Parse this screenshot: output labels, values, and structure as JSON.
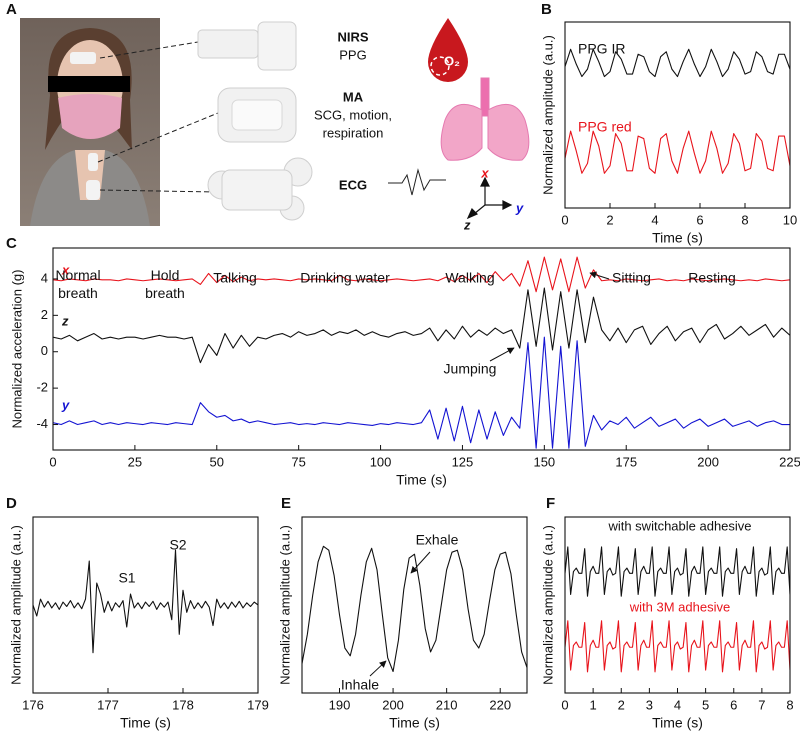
{
  "panel_labels": [
    "A",
    "B",
    "C",
    "D",
    "E",
    "F"
  ],
  "panel_a": {
    "devices": [
      {
        "title": "NIRS",
        "lines": [
          "PPG"
        ]
      },
      {
        "title": "MA",
        "lines": [
          "SCG, motion,",
          "respiration"
        ]
      },
      {
        "title": "ECG",
        "lines": []
      }
    ],
    "oxygen": "O₂",
    "axes": [
      "x",
      "y",
      "z"
    ]
  },
  "chart_data": [
    {
      "type": "line",
      "xlabel": "Time (s)",
      "ylabel": "Normalized amplitude (a.u.)",
      "xlim": [
        0,
        10
      ],
      "xticks": [
        0,
        2,
        4,
        6,
        8,
        10
      ],
      "ylim": [
        1.5,
        9
      ],
      "x": [
        0,
        0.25,
        0.5,
        0.75,
        1,
        1.25,
        1.5,
        1.75,
        2,
        2.25,
        2.5,
        2.75,
        3,
        3.25,
        3.5,
        3.75,
        4,
        4.25,
        4.5,
        4.75,
        5,
        5.25,
        5.5,
        5.75,
        6,
        6.25,
        6.5,
        6.75,
        7,
        7.25,
        7.5,
        7.75,
        8,
        8.25,
        8.5,
        8.75,
        9,
        9.25,
        9.5,
        9.75,
        10
      ],
      "series": [
        {
          "name": "PPG IR",
          "color": "#111111",
          "values": [
            7.2,
            7.9,
            7.3,
            6.8,
            7.1,
            7.9,
            7.4,
            6.8,
            7.0,
            7.8,
            7.5,
            6.9,
            6.9,
            7.7,
            7.6,
            7.0,
            6.8,
            7.6,
            7.8,
            7.1,
            6.8,
            7.4,
            7.9,
            7.3,
            6.8,
            7.2,
            7.9,
            7.4,
            6.8,
            7.1,
            7.8,
            7.5,
            6.9,
            7.0,
            7.8,
            7.6,
            7.0,
            6.9,
            7.7,
            7.7,
            7.1
          ]
        },
        {
          "name": "PPG red",
          "color": "#e8141c",
          "values": [
            3.5,
            4.6,
            3.8,
            2.9,
            3.3,
            4.6,
            4.0,
            2.9,
            3.2,
            4.5,
            4.1,
            3.0,
            3.0,
            4.4,
            4.3,
            3.1,
            2.9,
            4.3,
            4.5,
            3.4,
            2.9,
            3.9,
            4.6,
            3.7,
            2.9,
            3.4,
            4.6,
            3.9,
            2.9,
            3.3,
            4.5,
            4.1,
            3.0,
            3.1,
            4.5,
            4.2,
            3.1,
            3.0,
            4.4,
            4.4,
            3.2
          ]
        }
      ]
    },
    {
      "type": "line",
      "xlabel": "Time (s)",
      "ylabel": "Normalized acceleration (g)",
      "xlim": [
        0,
        225
      ],
      "xticks": [
        0,
        25,
        50,
        75,
        100,
        125,
        150,
        175,
        200,
        225
      ],
      "ylim": [
        -5.4,
        5.7
      ],
      "yticks": [
        -4,
        -2,
        0,
        2,
        4
      ],
      "x": [
        0,
        2.5,
        5,
        7.5,
        10,
        12.5,
        15,
        17.5,
        20,
        22.5,
        25,
        27.5,
        30,
        32.5,
        35,
        37.5,
        40,
        42.5,
        45,
        47.5,
        50,
        52.5,
        55,
        57.5,
        60,
        62.5,
        65,
        67.5,
        70,
        72.5,
        75,
        77.5,
        80,
        82.5,
        85,
        87.5,
        90,
        92.5,
        95,
        97.5,
        100,
        102.5,
        105,
        107.5,
        110,
        112.5,
        115,
        117.5,
        120,
        122.5,
        125,
        127.5,
        130,
        132.5,
        135,
        137.5,
        140,
        142.5,
        145,
        147.5,
        150,
        152.5,
        155,
        157.5,
        160,
        162.5,
        165,
        167.5,
        170,
        172.5,
        175,
        177.5,
        180,
        182.5,
        185,
        187.5,
        190,
        192.5,
        195,
        197.5,
        200,
        202.5,
        205,
        207.5,
        210,
        212.5,
        215,
        217.5,
        220,
        222.5,
        225
      ],
      "series": [
        {
          "name": "x",
          "color": "#e8141c",
          "values": [
            3.95,
            3.9,
            4.0,
            3.95,
            3.9,
            4.0,
            3.95,
            3.95,
            3.9,
            4.0,
            3.95,
            3.9,
            3.95,
            4.0,
            3.95,
            3.9,
            3.95,
            4.0,
            3.7,
            4.3,
            3.8,
            4.2,
            3.85,
            4.1,
            3.9,
            4.0,
            3.95,
            4.0,
            3.95,
            3.9,
            4.0,
            3.95,
            4.0,
            3.95,
            3.9,
            4.2,
            3.95,
            3.9,
            4.0,
            3.95,
            3.9,
            3.95,
            4.0,
            3.95,
            3.9,
            3.95,
            4.0,
            3.9,
            4.1,
            3.85,
            4.2,
            3.9,
            4.3,
            3.8,
            4.4,
            3.9,
            4.3,
            3.6,
            5.0,
            3.3,
            5.2,
            3.4,
            5.1,
            3.3,
            5.2,
            3.5,
            4.5,
            3.9,
            3.95,
            3.9,
            4.0,
            3.95,
            3.9,
            3.95,
            4.0,
            3.9,
            3.95,
            3.9,
            4.0,
            3.95,
            3.9,
            3.95,
            4.0,
            3.95,
            3.9,
            3.95,
            3.9,
            4.0,
            3.95,
            3.9,
            3.95
          ]
        },
        {
          "name": "z",
          "color": "#111111",
          "values": [
            0.8,
            0.7,
            0.9,
            0.6,
            0.8,
            1.0,
            0.7,
            0.8,
            0.7,
            0.8,
            0.8,
            0.7,
            0.8,
            0.9,
            0.8,
            0.8,
            0.7,
            0.8,
            -0.6,
            0.4,
            -0.2,
            1.0,
            0.2,
            0.9,
            0.3,
            0.8,
            0.7,
            0.9,
            1.0,
            0.8,
            1.1,
            0.9,
            1.0,
            1.2,
            0.9,
            1.1,
            1.0,
            1.2,
            0.9,
            1.1,
            0.9,
            0.8,
            1.0,
            1.1,
            0.9,
            1.0,
            1.3,
            0.6,
            1.2,
            0.7,
            1.4,
            0.8,
            1.2,
            0.9,
            1.3,
            1.0,
            1.2,
            0.2,
            3.4,
            0.3,
            3.5,
            0.1,
            3.3,
            0.2,
            3.4,
            0.5,
            3.0,
            1.2,
            0.6,
            1.3,
            0.5,
            1.2,
            1.4,
            0.4,
            1.0,
            1.4,
            0.6,
            1.1,
            1.3,
            0.5,
            1.2,
            1.5,
            0.7,
            1.0,
            1.4,
            0.9,
            1.2,
            1.5,
            0.8,
            1.3,
            0.9
          ]
        },
        {
          "name": "y",
          "color": "#1414d2",
          "values": [
            -3.9,
            -4.0,
            -3.8,
            -4.0,
            -3.9,
            -3.8,
            -4.0,
            -3.9,
            -4.0,
            -3.9,
            -3.95,
            -4.0,
            -3.9,
            -3.95,
            -4.0,
            -3.9,
            -3.95,
            -4.0,
            -2.8,
            -3.3,
            -3.6,
            -3.5,
            -3.8,
            -3.7,
            -3.9,
            -3.8,
            -3.9,
            -4.0,
            -3.95,
            -3.9,
            -4.0,
            -3.95,
            -4.0,
            -3.9,
            -3.95,
            -4.0,
            -3.9,
            -3.95,
            -4.0,
            -4.05,
            -3.95,
            -4.0,
            -3.9,
            -3.95,
            -4.0,
            -3.9,
            -3.2,
            -4.8,
            -3.1,
            -4.9,
            -3.0,
            -5.0,
            -3.2,
            -4.8,
            -3.3,
            -4.6,
            -3.6,
            -4.2,
            0.5,
            -5.3,
            0.8,
            -5.3,
            0.3,
            -5.3,
            0.6,
            -5.2,
            -3.5,
            -4.3,
            -3.8,
            -4.0,
            -3.6,
            -4.2,
            -3.9,
            -3.6,
            -4.1,
            -3.9,
            -3.7,
            -4.2,
            -3.9,
            -3.7,
            -4.1,
            -3.9,
            -3.7,
            -4.1,
            -3.95,
            -3.8,
            -4.1,
            -3.9,
            -3.8,
            -4.0,
            -4.0
          ]
        }
      ],
      "annotations": [
        [
          "Normal",
          "breath"
        ],
        [
          "Hold",
          "breath"
        ],
        "Talking",
        "Drinking water",
        "Walking",
        "Jumping",
        "Sitting",
        "Resting"
      ]
    },
    {
      "type": "line",
      "xlabel": "Time (s)",
      "ylabel": "Normalized amplitude (a.u.)",
      "xlim": [
        176,
        179
      ],
      "xticks": [
        176,
        177,
        178,
        179
      ],
      "ylim": [
        -12,
        12
      ],
      "color": "#111111",
      "x": [
        176,
        176.05,
        176.1,
        176.15,
        176.2,
        176.25,
        176.3,
        176.35,
        176.4,
        176.45,
        176.5,
        176.55,
        176.6,
        176.65,
        176.7,
        176.75,
        176.8,
        176.85,
        176.9,
        176.95,
        177,
        177.05,
        177.1,
        177.15,
        177.2,
        177.25,
        177.3,
        177.35,
        177.4,
        177.45,
        177.5,
        177.55,
        177.6,
        177.65,
        177.7,
        177.75,
        177.8,
        177.85,
        177.9,
        177.95,
        178,
        178.05,
        178.1,
        178.15,
        178.2,
        178.25,
        178.3,
        178.35,
        178.4,
        178.45,
        178.5,
        178.55,
        178.6,
        178.65,
        178.7,
        178.75,
        178.8,
        178.85,
        178.9,
        178.95,
        179
      ],
      "values": [
        0.0,
        -1.5,
        0.8,
        -0.3,
        0.5,
        -0.4,
        0.3,
        -0.6,
        0.4,
        -0.2,
        0.6,
        -0.4,
        0.3,
        -0.5,
        0.8,
        6.0,
        -6.5,
        3.0,
        1.5,
        -1.0,
        0.5,
        -0.8,
        0.3,
        -0.3,
        0.6,
        -3.0,
        1.5,
        -0.4,
        0.3,
        -0.5,
        0.4,
        -0.2,
        0.5,
        -0.6,
        0.3,
        -0.3,
        0.4,
        -2.0,
        7.5,
        -4.0,
        2.0,
        -1.0,
        0.6,
        -0.5,
        0.3,
        -0.4,
        0.5,
        -0.3,
        -2.8,
        0.8,
        -0.4,
        0.3,
        -0.5,
        0.4,
        -0.3,
        0.5,
        -0.4,
        0.3,
        -0.2,
        0.4,
        0.0
      ],
      "annotations": [
        "S1",
        "S2"
      ]
    },
    {
      "type": "line",
      "xlabel": "Time (s)",
      "ylabel": "Normalized amplitude (a.u.)",
      "xlim": [
        183,
        225
      ],
      "xticks": [
        190,
        200,
        210,
        220
      ],
      "ylim": [
        0.5,
        9.5
      ],
      "color": "#111111",
      "x": [
        183,
        184,
        185,
        186,
        187,
        188,
        189,
        190,
        191,
        192,
        193,
        194,
        195,
        196,
        197,
        198,
        199,
        200,
        201,
        202,
        203,
        204,
        205,
        206,
        207,
        208,
        209,
        210,
        211,
        212,
        213,
        214,
        215,
        216,
        217,
        218,
        219,
        220,
        221,
        222,
        223,
        224,
        225
      ],
      "values": [
        2.0,
        3.5,
        5.5,
        7.2,
        8.0,
        7.8,
        6.5,
        4.5,
        2.8,
        2.4,
        3.5,
        5.5,
        7.2,
        7.9,
        6.8,
        4.5,
        2.3,
        1.6,
        3.2,
        5.8,
        7.4,
        7.6,
        6.0,
        3.8,
        2.6,
        3.2,
        5.0,
        6.8,
        7.7,
        7.8,
        6.8,
        4.8,
        3.2,
        2.8,
        3.5,
        5.2,
        6.8,
        7.6,
        7.7,
        6.6,
        4.5,
        2.6,
        1.8
      ],
      "annotations": [
        "Exhale",
        "Inhale"
      ]
    },
    {
      "type": "line",
      "xlabel": "Time (s)",
      "ylabel": "Normalized amplitude (a.u.)",
      "xlim": [
        0,
        8
      ],
      "xticks": [
        0,
        1,
        2,
        3,
        4,
        5,
        6,
        7,
        8
      ],
      "ylim": [
        0,
        10
      ],
      "x": [
        0,
        0.1,
        0.2,
        0.3,
        0.4,
        0.5,
        0.6,
        0.7,
        0.8,
        0.9,
        1,
        1.1,
        1.2,
        1.3,
        1.4,
        1.5,
        1.6,
        1.7,
        1.8,
        1.9,
        2,
        2.1,
        2.2,
        2.3,
        2.4,
        2.5,
        2.6,
        2.7,
        2.8,
        2.9,
        3,
        3.1,
        3.2,
        3.3,
        3.4,
        3.5,
        3.6,
        3.7,
        3.8,
        3.9,
        4,
        4.1,
        4.2,
        4.3,
        4.4,
        4.5,
        4.6,
        4.7,
        4.8,
        4.9,
        5,
        5.1,
        5.2,
        5.3,
        5.4,
        5.5,
        5.6,
        5.7,
        5.8,
        5.9,
        6,
        6.1,
        6.2,
        6.3,
        6.4,
        6.5,
        6.6,
        6.7,
        6.8,
        6.9,
        7,
        7.1,
        7.2,
        7.3,
        7.4,
        7.5,
        7.6,
        7.7,
        7.8,
        7.9,
        8
      ],
      "series": [
        {
          "name": "with switchable adhesive",
          "color": "#111111",
          "values": [
            6.8,
            8.3,
            5.6,
            6.9,
            7.1,
            6.8,
            6.8,
            8.2,
            5.5,
            6.9,
            7.2,
            6.8,
            6.8,
            8.3,
            5.6,
            6.9,
            7.1,
            6.7,
            6.8,
            8.3,
            5.5,
            6.9,
            7.1,
            6.8,
            6.8,
            8.2,
            5.6,
            6.9,
            7.2,
            6.8,
            6.8,
            8.3,
            5.5,
            6.9,
            7.1,
            6.8,
            6.8,
            8.3,
            5.6,
            6.9,
            7.1,
            6.7,
            6.8,
            8.2,
            5.5,
            6.9,
            7.2,
            6.8,
            6.8,
            8.3,
            5.6,
            6.9,
            7.1,
            6.8,
            6.8,
            8.3,
            5.5,
            6.9,
            7.1,
            6.8,
            6.8,
            8.2,
            5.6,
            6.9,
            7.2,
            6.8,
            6.8,
            8.3,
            5.5,
            6.9,
            7.1,
            6.7,
            6.8,
            8.3,
            5.6,
            6.9,
            7.1,
            6.8,
            6.8,
            8.3,
            5.6
          ]
        },
        {
          "name": "with 3M adhesive",
          "color": "#e8141c",
          "values": [
            2.6,
            4.1,
            1.3,
            2.7,
            2.9,
            2.6,
            2.6,
            4.0,
            1.2,
            2.7,
            3.0,
            2.6,
            2.6,
            4.1,
            1.3,
            2.7,
            2.9,
            2.5,
            2.6,
            4.1,
            1.2,
            2.7,
            2.9,
            2.6,
            2.6,
            4.0,
            1.3,
            2.7,
            3.0,
            2.6,
            2.6,
            4.1,
            1.2,
            2.7,
            2.9,
            2.6,
            2.6,
            4.1,
            1.3,
            2.7,
            2.9,
            2.5,
            2.6,
            4.0,
            1.2,
            2.7,
            3.0,
            2.6,
            2.6,
            4.1,
            1.3,
            2.7,
            2.9,
            2.6,
            2.6,
            4.1,
            1.2,
            2.7,
            2.9,
            2.6,
            2.6,
            4.0,
            1.3,
            2.7,
            3.0,
            2.6,
            2.6,
            4.1,
            1.2,
            2.7,
            2.9,
            2.5,
            2.6,
            4.1,
            1.3,
            2.7,
            2.9,
            2.6,
            2.6,
            4.1,
            1.3
          ]
        }
      ]
    }
  ]
}
